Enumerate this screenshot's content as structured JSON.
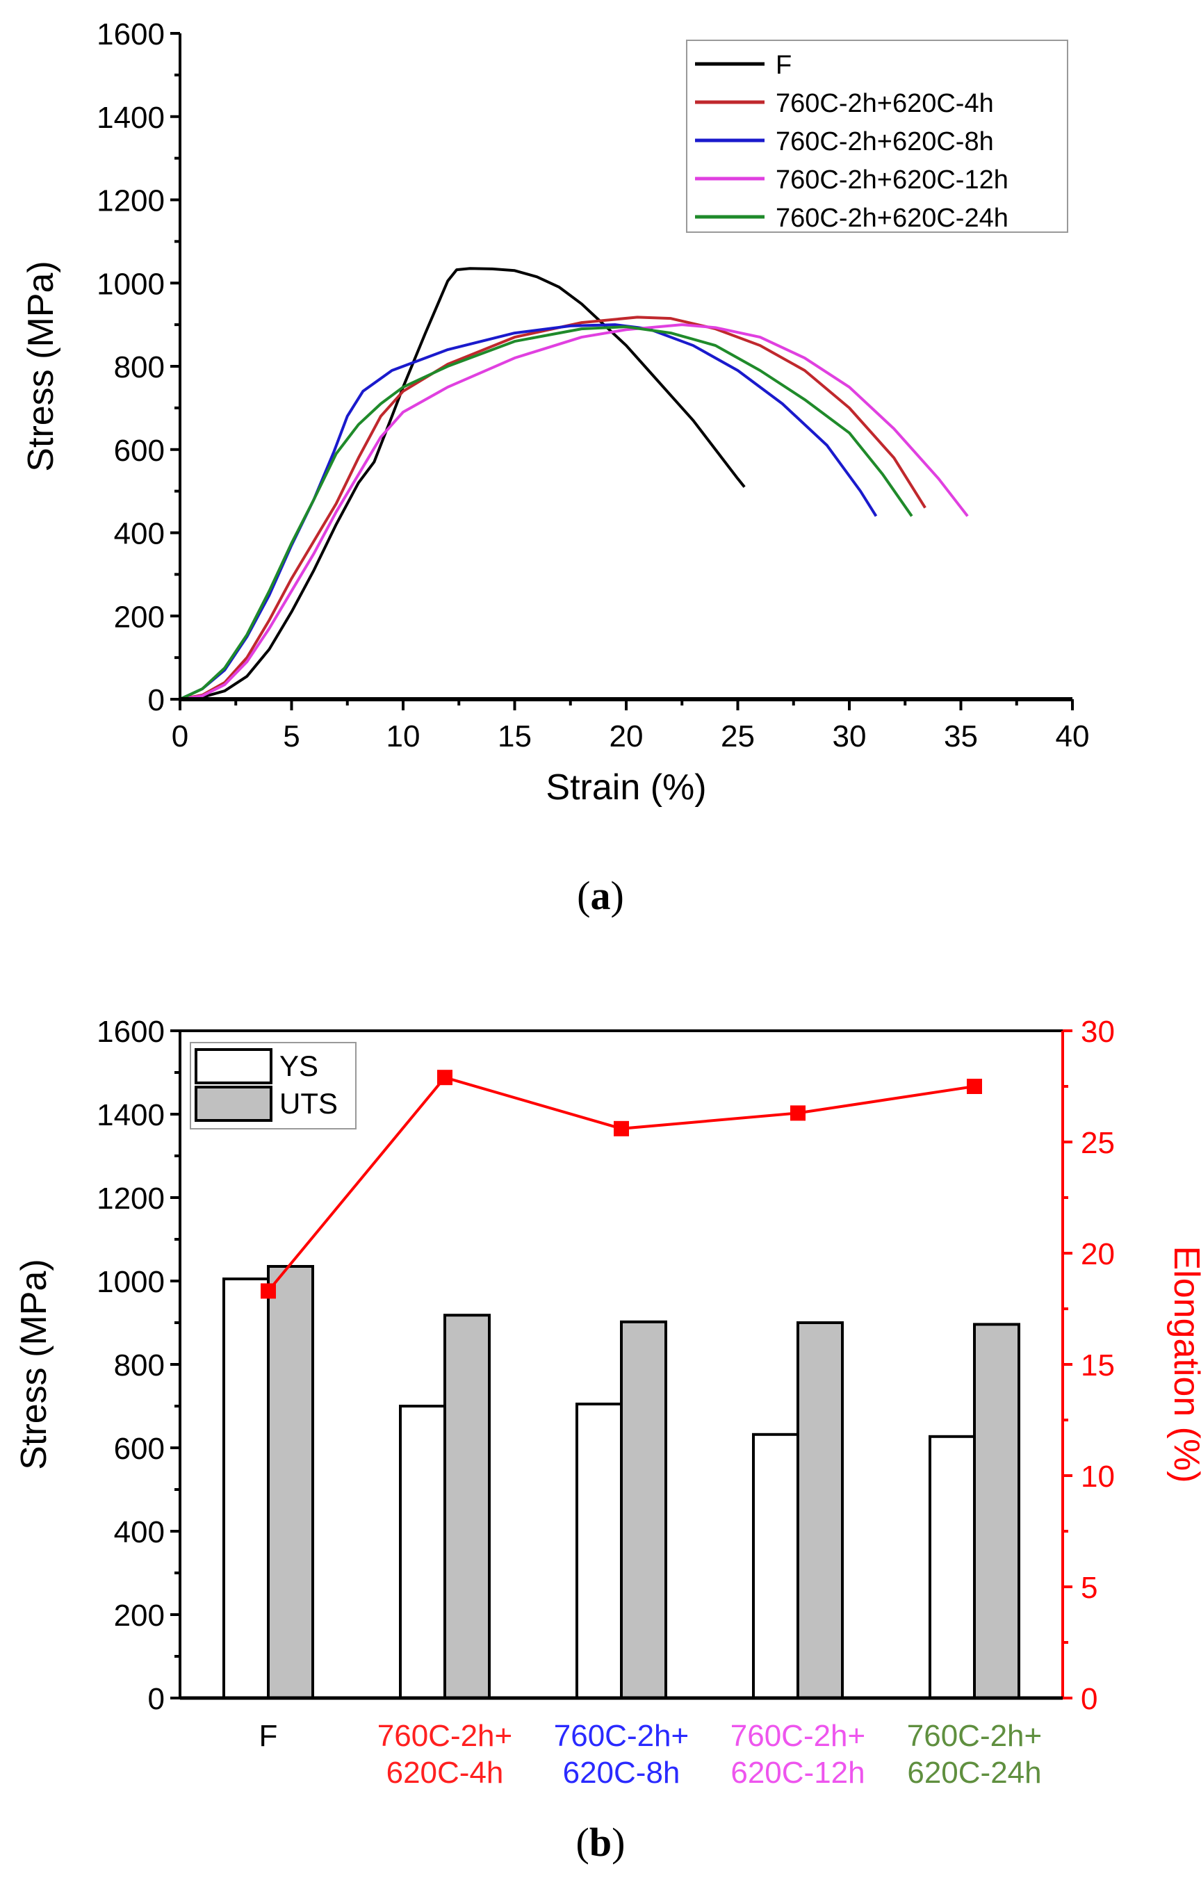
{
  "chart_data": [
    {
      "type": "line",
      "caption_letter": "a",
      "xlabel": "Strain (%)",
      "ylabel": "Stress (MPa)",
      "xlim": [
        0,
        40
      ],
      "ylim": [
        0,
        1600
      ],
      "xticks": [
        0,
        5,
        10,
        15,
        20,
        25,
        30,
        35,
        40
      ],
      "yticks": [
        0,
        200,
        400,
        600,
        800,
        1000,
        1200,
        1400,
        1600
      ],
      "legend_position": "top-right",
      "series": [
        {
          "name": "F",
          "color": "#000000",
          "points": [
            [
              0,
              0
            ],
            [
              1,
              5
            ],
            [
              2,
              20
            ],
            [
              3,
              55
            ],
            [
              4,
              120
            ],
            [
              5,
              210
            ],
            [
              6,
              310
            ],
            [
              7,
              420
            ],
            [
              8,
              520
            ],
            [
              8.7,
              570
            ],
            [
              9.5,
              680
            ],
            [
              10,
              750
            ],
            [
              11,
              880
            ],
            [
              12,
              1005
            ],
            [
              12.4,
              1032
            ],
            [
              13,
              1035
            ],
            [
              14,
              1034
            ],
            [
              15,
              1030
            ],
            [
              16,
              1015
            ],
            [
              17,
              990
            ],
            [
              18,
              950
            ],
            [
              19,
              900
            ],
            [
              20,
              850
            ],
            [
              21,
              790
            ],
            [
              22,
              730
            ],
            [
              23,
              670
            ],
            [
              24,
              600
            ],
            [
              25,
              530
            ],
            [
              25.3,
              510
            ]
          ]
        },
        {
          "name": "760C-2h+620C-4h",
          "color": "#c0282d",
          "points": [
            [
              0,
              0
            ],
            [
              1,
              10
            ],
            [
              2,
              40
            ],
            [
              3,
              100
            ],
            [
              4,
              190
            ],
            [
              5,
              290
            ],
            [
              6,
              380
            ],
            [
              7,
              470
            ],
            [
              8,
              580
            ],
            [
              9,
              680
            ],
            [
              10,
              740
            ],
            [
              12,
              805
            ],
            [
              15,
              870
            ],
            [
              18,
              905
            ],
            [
              20.5,
              918
            ],
            [
              22,
              915
            ],
            [
              24,
              890
            ],
            [
              26,
              850
            ],
            [
              28,
              790
            ],
            [
              30,
              700
            ],
            [
              32,
              580
            ],
            [
              33.4,
              460
            ]
          ]
        },
        {
          "name": "760C-2h+620C-8h",
          "color": "#1a1acc",
          "points": [
            [
              0,
              0
            ],
            [
              1,
              25
            ],
            [
              2,
              70
            ],
            [
              3,
              150
            ],
            [
              4,
              250
            ],
            [
              5,
              370
            ],
            [
              6,
              480
            ],
            [
              6.9,
              595
            ],
            [
              7.5,
              680
            ],
            [
              8.2,
              740
            ],
            [
              9.5,
              790
            ],
            [
              10,
              800
            ],
            [
              12,
              840
            ],
            [
              15,
              880
            ],
            [
              17.5,
              897
            ],
            [
              19.5,
              900
            ],
            [
              21,
              890
            ],
            [
              23,
              850
            ],
            [
              25,
              790
            ],
            [
              27,
              710
            ],
            [
              29,
              610
            ],
            [
              30.5,
              500
            ],
            [
              31.2,
              440
            ]
          ]
        },
        {
          "name": "760C-2h+620C-12h",
          "color": "#e040e0",
          "points": [
            [
              0,
              0
            ],
            [
              1,
              8
            ],
            [
              2,
              35
            ],
            [
              3,
              90
            ],
            [
              4,
              170
            ],
            [
              5,
              260
            ],
            [
              6,
              350
            ],
            [
              7,
              450
            ],
            [
              8,
              540
            ],
            [
              9,
              630
            ],
            [
              10,
              690
            ],
            [
              12,
              750
            ],
            [
              15,
              820
            ],
            [
              18,
              870
            ],
            [
              20,
              888
            ],
            [
              22.5,
              900
            ],
            [
              24,
              893
            ],
            [
              26,
              870
            ],
            [
              28,
              820
            ],
            [
              30,
              750
            ],
            [
              32,
              650
            ],
            [
              34,
              530
            ],
            [
              35.3,
              440
            ]
          ]
        },
        {
          "name": "760C-2h+620C-24h",
          "color": "#1f8a2a",
          "points": [
            [
              0,
              0
            ],
            [
              1,
              25
            ],
            [
              2,
              75
            ],
            [
              3,
              155
            ],
            [
              4,
              260
            ],
            [
              5,
              375
            ],
            [
              6,
              480
            ],
            [
              7,
              590
            ],
            [
              8,
              660
            ],
            [
              9,
              710
            ],
            [
              10,
              750
            ],
            [
              12,
              800
            ],
            [
              15,
              860
            ],
            [
              18,
              890
            ],
            [
              20,
              895
            ],
            [
              22,
              880
            ],
            [
              24,
              850
            ],
            [
              26,
              790
            ],
            [
              28,
              720
            ],
            [
              30,
              640
            ],
            [
              31.5,
              540
            ],
            [
              32.8,
              440
            ]
          ]
        }
      ]
    },
    {
      "type": "bar",
      "caption_letter": "b",
      "ylabel": "Stress (MPa)",
      "y2label": "Elongation (%)",
      "ylim": [
        0,
        1600
      ],
      "y2lim": [
        0,
        30
      ],
      "yticks": [
        0,
        200,
        400,
        600,
        800,
        1000,
        1200,
        1400,
        1600
      ],
      "y2ticks": [
        0,
        5,
        10,
        15,
        20,
        25,
        30
      ],
      "legend_position": "top-left",
      "categories": [
        {
          "line1": "F",
          "line2": "",
          "color": "#000000"
        },
        {
          "line1": "760C-2h+",
          "line2": "620C-4h",
          "color": "#ff2020"
        },
        {
          "line1": "760C-2h+",
          "line2": "620C-8h",
          "color": "#2a2aff"
        },
        {
          "line1": "760C-2h+",
          "line2": "620C-12h",
          "color": "#ee55ee"
        },
        {
          "line1": "760C-2h+",
          "line2": "620C-24h",
          "color": "#5f8f3f"
        }
      ],
      "series": [
        {
          "name": "YS",
          "fill": "#ffffff",
          "values": [
            1005,
            700,
            705,
            632,
            627
          ]
        },
        {
          "name": "UTS",
          "fill": "#c0c0c0",
          "values": [
            1035,
            918,
            902,
            900,
            896
          ]
        }
      ],
      "line_series": {
        "name": "Elongation",
        "color": "#ff0000",
        "values": [
          18.3,
          27.9,
          25.6,
          26.3,
          27.5
        ]
      }
    }
  ]
}
